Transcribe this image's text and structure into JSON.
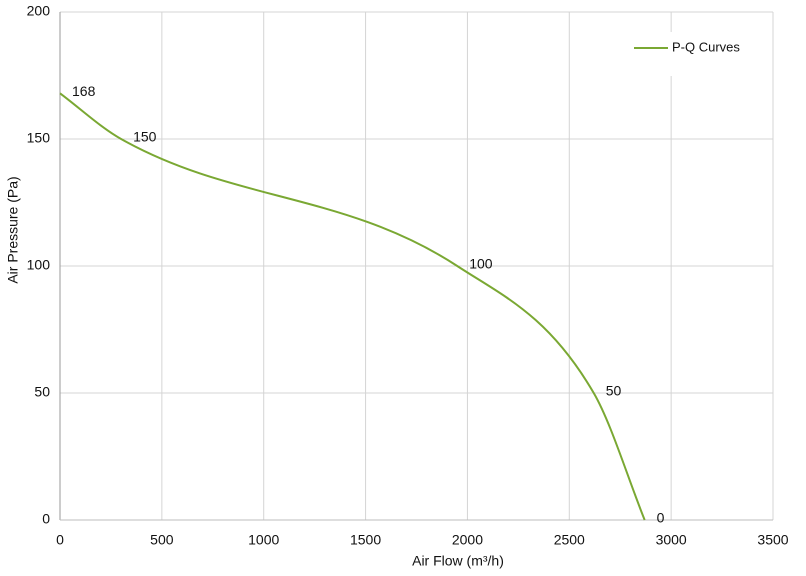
{
  "chart_data": {
    "type": "line",
    "x_label": "Air Flow  (m³/h)",
    "y_label": "Air Pressure  (Pa)",
    "x": [
      0,
      300,
      1950,
      2620,
      2870
    ],
    "series": [
      {
        "name": "P-Q Curves",
        "color": "#7aa833",
        "values": [
          168,
          150,
          100,
          50,
          0
        ]
      }
    ],
    "xlim": [
      0,
      3500
    ],
    "xticks": [
      0,
      500,
      1000,
      1500,
      2000,
      2500,
      3000,
      3500
    ],
    "ylim": [
      0,
      200
    ],
    "yticks": [
      0,
      50,
      100,
      150,
      200
    ],
    "grid": true,
    "legend": "top-right",
    "data_labels": true
  }
}
